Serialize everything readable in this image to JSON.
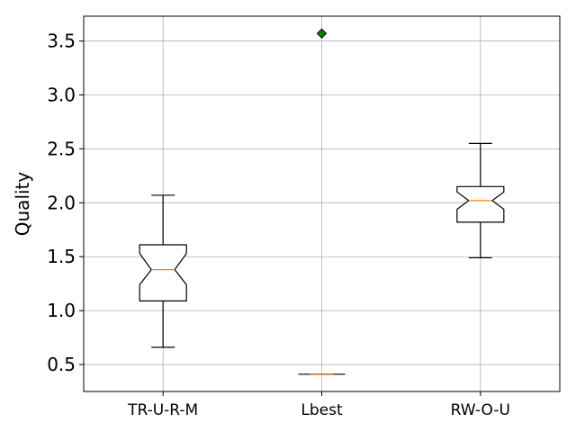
{
  "chart_data": {
    "type": "box",
    "ylabel": "Quality",
    "xlabel": "",
    "ylim": [
      0.25,
      3.73
    ],
    "yticks": [
      0.5,
      1.0,
      1.5,
      2.0,
      2.5,
      3.0,
      3.5
    ],
    "ytick_labels": [
      "0.5",
      "1.0",
      "1.5",
      "2.0",
      "2.5",
      "3.0",
      "3.5"
    ],
    "grid": true,
    "notched": true,
    "categories": [
      "TR-U-R-M",
      "Lbest",
      "RW-O-U"
    ],
    "boxes": [
      {
        "label": "TR-U-R-M",
        "whisker_low": 0.66,
        "q1": 1.09,
        "median": 1.38,
        "q3": 1.61,
        "whisker_high": 2.07,
        "notch_low": 1.24,
        "notch_high": 1.53,
        "outliers": []
      },
      {
        "label": "Lbest",
        "whisker_low": 0.41,
        "q1": 0.41,
        "median": 0.41,
        "q3": 0.41,
        "whisker_high": 0.41,
        "notch_low": 0.41,
        "notch_high": 0.41,
        "outliers": [
          3.57
        ]
      },
      {
        "label": "RW-O-U",
        "whisker_low": 1.49,
        "q1": 1.82,
        "median": 2.02,
        "q3": 2.15,
        "whisker_high": 2.55,
        "notch_low": 1.94,
        "notch_high": 2.1,
        "outliers": []
      }
    ],
    "colors": {
      "median": "#ff7f0e",
      "outlier": "#008000",
      "grid": "#b0b0b0",
      "box": "#000000"
    }
  }
}
